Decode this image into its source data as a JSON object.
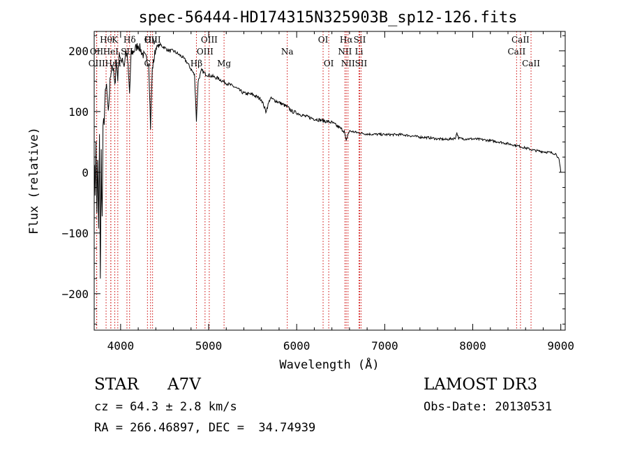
{
  "chart_data": {
    "type": "line",
    "title": "spec-56444-HD174315N325903B_sp12-126.fits",
    "xlabel": "Wavelength (Å)",
    "ylabel": "Flux (relative)",
    "xlim": [
      3700,
      9050
    ],
    "ylim": [
      -260,
      232
    ],
    "xticks": [
      4000,
      5000,
      6000,
      7000,
      8000,
      9000
    ],
    "yticks": [
      -200,
      -100,
      0,
      100,
      200
    ],
    "series": [
      {
        "name": "flux",
        "x": [
          3700,
          3710,
          3720,
          3730,
          3740,
          3750,
          3760,
          3770,
          3780,
          3790,
          3800,
          3820,
          3840,
          3860,
          3880,
          3900,
          3920,
          3935,
          3950,
          3968,
          3985,
          4000,
          4020,
          4040,
          4060,
          4080,
          4102,
          4120,
          4150,
          4200,
          4250,
          4300,
          4320,
          4340,
          4360,
          4400,
          4450,
          4500,
          4550,
          4600,
          4650,
          4700,
          4750,
          4800,
          4840,
          4861,
          4880,
          4920,
          4960,
          5000,
          5100,
          5200,
          5300,
          5400,
          5500,
          5600,
          5650,
          5700,
          5800,
          5890,
          5950,
          6000,
          6100,
          6200,
          6300,
          6400,
          6500,
          6540,
          6563,
          6580,
          6600,
          6700,
          6800,
          7000,
          7200,
          7400,
          7500,
          7600,
          7700,
          7800,
          7820,
          7840,
          7900,
          8000,
          8100,
          8200,
          8300,
          8400,
          8500,
          8600,
          8700,
          8800,
          8900,
          8950,
          8980,
          9000
        ],
        "y": [
          20,
          -30,
          40,
          -60,
          10,
          -100,
          50,
          -170,
          30,
          -80,
          60,
          110,
          140,
          95,
          150,
          180,
          165,
          140,
          185,
          155,
          200,
          180,
          190,
          175,
          200,
          185,
          130,
          195,
          200,
          210,
          195,
          185,
          180,
          75,
          170,
          205,
          210,
          205,
          200,
          200,
          195,
          190,
          182,
          170,
          160,
          85,
          150,
          168,
          162,
          160,
          155,
          147,
          140,
          130,
          128,
          120,
          100,
          122,
          115,
          108,
          100,
          98,
          92,
          88,
          85,
          82,
          72,
          68,
          50,
          62,
          68,
          65,
          63,
          62,
          62,
          58,
          57,
          55,
          54,
          56,
          65,
          56,
          55,
          55,
          54,
          52,
          50,
          47,
          44,
          40,
          36,
          34,
          32,
          30,
          20,
          0
        ]
      }
    ],
    "lines": [
      {
        "name": "H9",
        "label": "Hθ",
        "wave": 3835,
        "row": 1
      },
      {
        "name": "OII",
        "label": "OII",
        "wave": 3727,
        "row": 2
      },
      {
        "name": "OIII-em",
        "label": "OIII",
        "wave": 3729,
        "row": 3
      },
      {
        "name": "Heps",
        "label": "Hε",
        "wave": 3889,
        "row": 3
      },
      {
        "name": "HeI",
        "label": "HeI",
        "wave": 3889,
        "row": 2
      },
      {
        "name": "K",
        "label": "K",
        "wave": 3934,
        "row": 1
      },
      {
        "name": "SII",
        "label": "SII",
        "wave": 4072,
        "row": 2
      },
      {
        "name": "H",
        "label": "H",
        "wave": 3968,
        "row": 3
      },
      {
        "name": "Hdelta",
        "label": "Hδ",
        "wave": 4102,
        "row": 1
      },
      {
        "name": "G",
        "label": "G",
        "wave": 4305,
        "row": 3
      },
      {
        "name": "Hgamma",
        "label": "Hγ",
        "wave": 4340,
        "row": 1
      },
      {
        "name": "OIII-4363",
        "label": "OIII",
        "wave": 4363,
        "row": 1
      },
      {
        "name": "Hbeta",
        "label": "Hβ",
        "wave": 4861,
        "row": 3
      },
      {
        "name": "OIII-4959",
        "label": "OIII",
        "wave": 4959,
        "row": 2
      },
      {
        "name": "OIII-5007",
        "label": "OIII",
        "wave": 5007,
        "row": 1
      },
      {
        "name": "Mg",
        "label": "Mg",
        "wave": 5175,
        "row": 3
      },
      {
        "name": "Na",
        "label": "Na",
        "wave": 5893,
        "row": 2
      },
      {
        "name": "OI-6300",
        "label": "OI",
        "wave": 6300,
        "row": 1
      },
      {
        "name": "OI-6364",
        "label": "OI",
        "wave": 6364,
        "row": 3
      },
      {
        "name": "NII-6548",
        "label": "NII",
        "wave": 6548,
        "row": 2
      },
      {
        "name": "Halpha",
        "label": "Hα",
        "wave": 6563,
        "row": 1
      },
      {
        "name": "NII-6583",
        "label": "NII",
        "wave": 6583,
        "row": 3
      },
      {
        "name": "Li",
        "label": "Li",
        "wave": 6708,
        "row": 2
      },
      {
        "name": "SII-6716",
        "label": "SII",
        "wave": 6716,
        "row": 1
      },
      {
        "name": "SII-6731",
        "label": "SII",
        "wave": 6731,
        "row": 3
      },
      {
        "name": "CaII-8498",
        "label": "CaII",
        "wave": 8498,
        "row": 2
      },
      {
        "name": "CaII-8542",
        "label": "CaII",
        "wave": 8542,
        "row": 1
      },
      {
        "name": "CaII-8662",
        "label": "CaII",
        "wave": 8662,
        "row": 3
      }
    ],
    "line_color": "#cc0000",
    "spectrum_color": "#000000"
  },
  "info": {
    "object_class": "STAR",
    "subclass": "A7V",
    "survey": "LAMOST DR3",
    "redshift": "cz = 64.3 ± 2.8 km/s",
    "obs_date": "Obs-Date: 20130531",
    "coords": "RA = 266.46897, DEC =  34.74939"
  }
}
